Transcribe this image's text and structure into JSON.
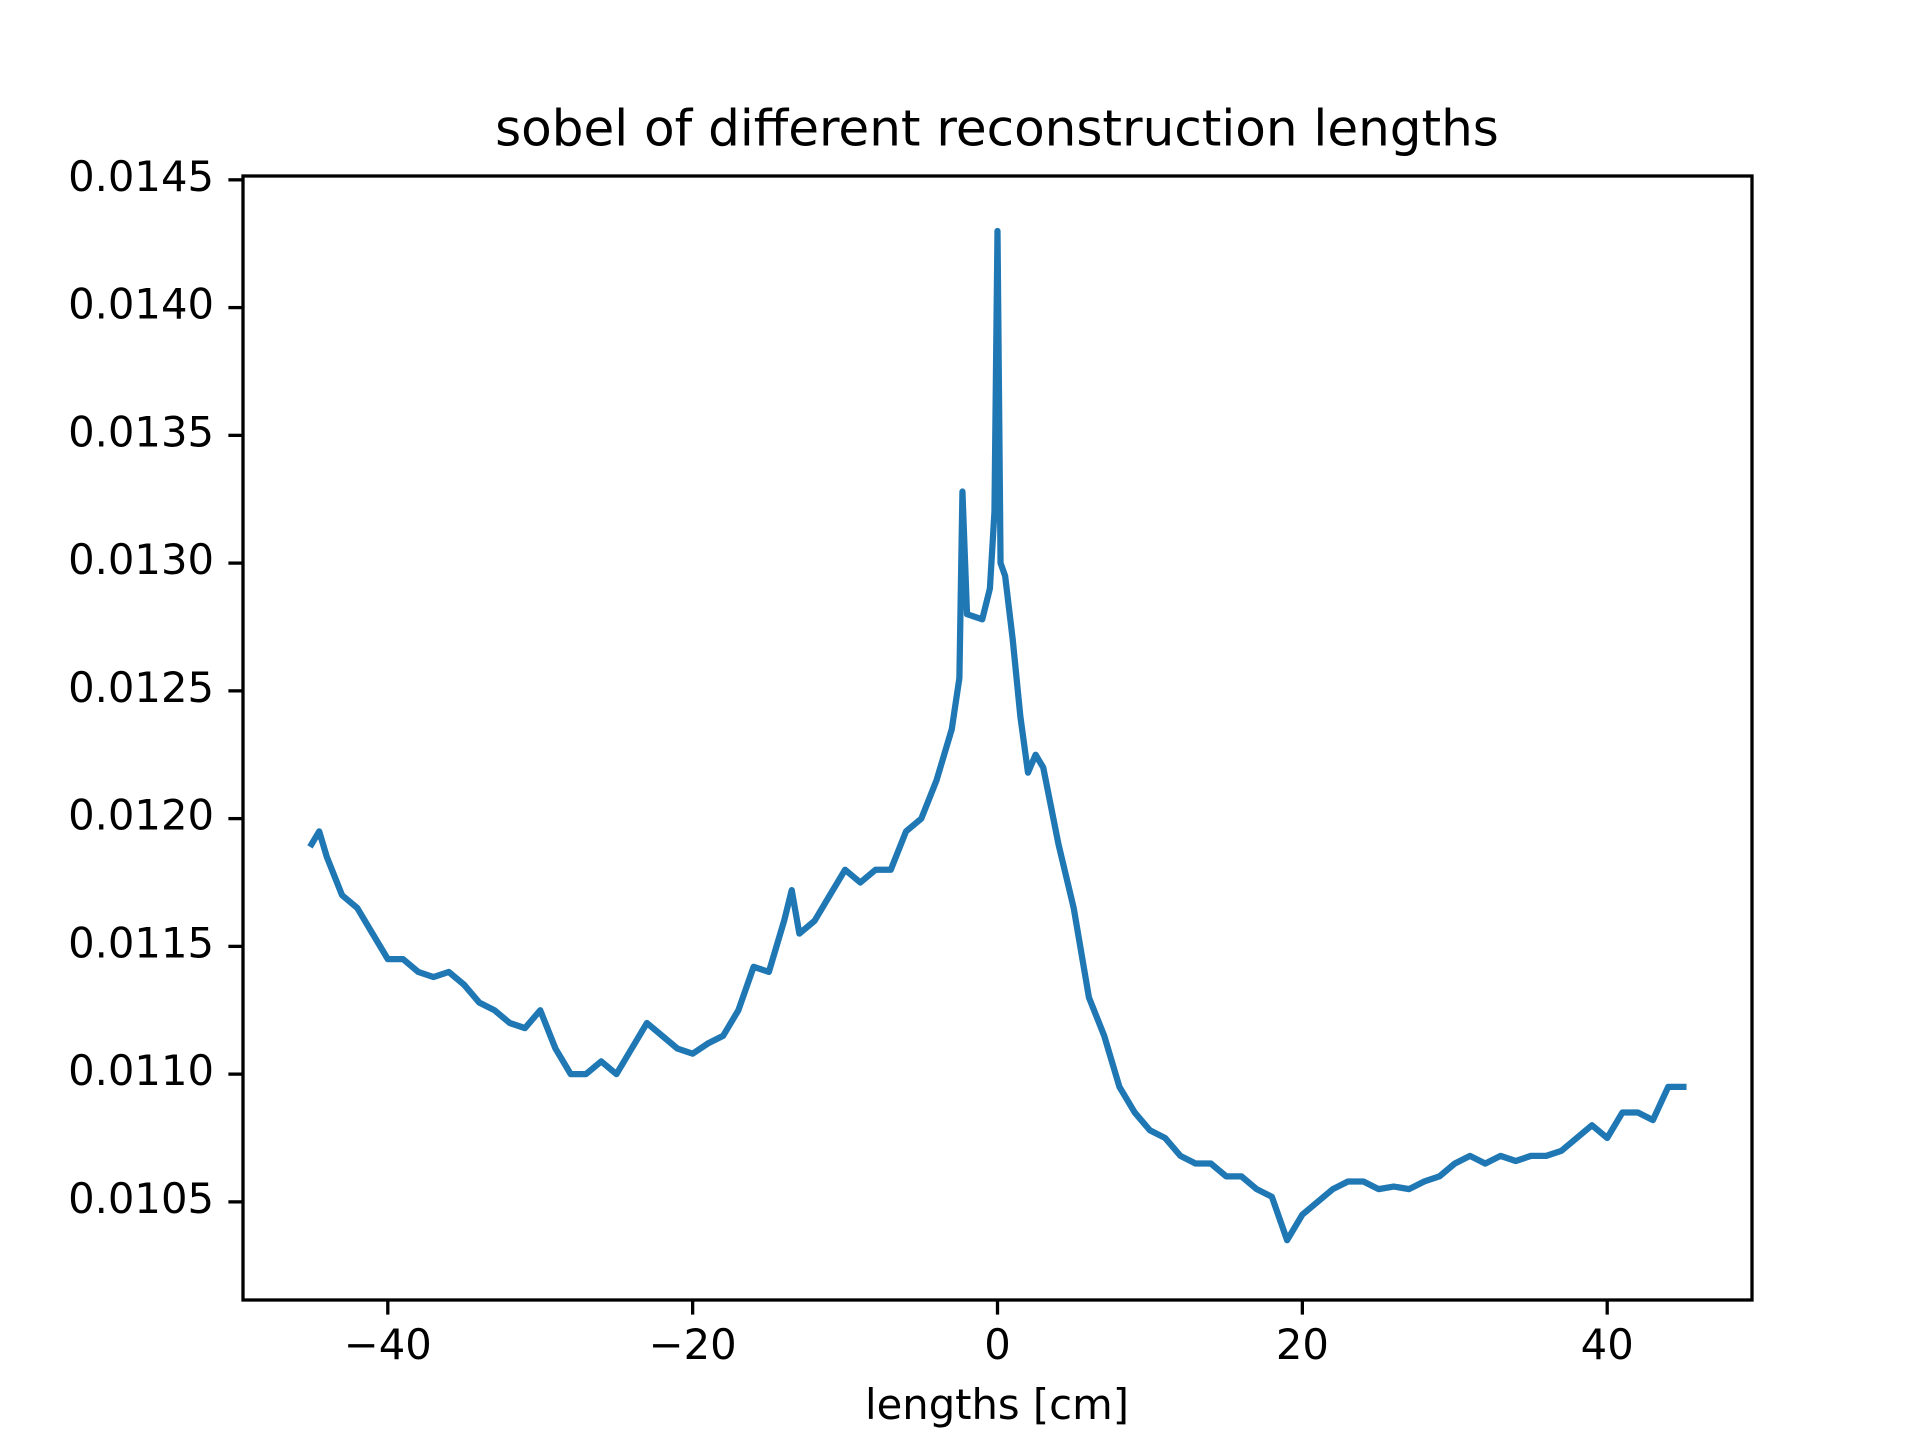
{
  "chart_data": {
    "type": "line",
    "title": "sobel of different reconstruction lengths",
    "xlabel": "lengths [cm]",
    "x": [
      -45,
      -44.5,
      -44,
      -43,
      -42,
      -41,
      -40,
      -39,
      -38,
      -37,
      -36,
      -35,
      -34,
      -33,
      -32,
      -31,
      -30,
      -29,
      -28,
      -27,
      -26,
      -25,
      -24,
      -23,
      -22,
      -21,
      -20,
      -19,
      -18,
      -17,
      -16,
      -15,
      -14,
      -13.5,
      -13,
      -12,
      -11,
      -10,
      -9,
      -8,
      -7,
      -6,
      -5,
      -4,
      -3,
      -2.5,
      -2.3,
      -2,
      -1,
      -0.5,
      -0.2,
      0,
      0.2,
      0.5,
      1,
      1.5,
      2,
      2.5,
      3,
      4,
      5,
      6,
      7,
      8,
      9,
      10,
      11,
      12,
      13,
      14,
      15,
      16,
      17,
      18,
      19,
      20,
      21,
      22,
      23,
      24,
      25,
      26,
      27,
      28,
      29,
      30,
      31,
      32,
      33,
      34,
      35,
      36,
      37,
      38,
      39,
      40,
      41,
      42,
      43,
      44,
      45
    ],
    "series": [
      {
        "color": "#1f77b4",
        "values": [
          0.0119,
          0.01195,
          0.01185,
          0.0117,
          0.01165,
          0.01155,
          0.01145,
          0.01145,
          0.0114,
          0.01138,
          0.0114,
          0.01135,
          0.01128,
          0.01125,
          0.0112,
          0.01118,
          0.01125,
          0.0111,
          0.011,
          0.011,
          0.01105,
          0.011,
          0.0111,
          0.0112,
          0.01115,
          0.0111,
          0.01108,
          0.01112,
          0.01115,
          0.01125,
          0.01142,
          0.0114,
          0.0116,
          0.01172,
          0.01155,
          0.0116,
          0.0117,
          0.0118,
          0.01175,
          0.0118,
          0.0118,
          0.01195,
          0.012,
          0.01215,
          0.01235,
          0.01255,
          0.01328,
          0.0128,
          0.01278,
          0.0129,
          0.0132,
          0.0143,
          0.013,
          0.01295,
          0.0127,
          0.0124,
          0.01218,
          0.01225,
          0.0122,
          0.0119,
          0.01165,
          0.0113,
          0.01115,
          0.01095,
          0.01085,
          0.01078,
          0.01075,
          0.01068,
          0.01065,
          0.01065,
          0.0106,
          0.0106,
          0.01055,
          0.01052,
          0.01035,
          0.01045,
          0.0105,
          0.01055,
          0.01058,
          0.01058,
          0.01055,
          0.01056,
          0.01055,
          0.01058,
          0.0106,
          0.01065,
          0.01068,
          0.01065,
          0.01068,
          0.01066,
          0.01068,
          0.01068,
          0.0107,
          0.01075,
          0.0108,
          0.01075,
          0.01085,
          0.01085,
          0.01082,
          0.01095,
          0.01095
        ]
      }
    ],
    "xlim": [
      -49.5,
      49.5
    ],
    "xticks": [
      {
        "value": -40,
        "label": "−40"
      },
      {
        "value": -20,
        "label": "−20"
      },
      0,
      20,
      40
    ],
    "ylim": [
      0.010116,
      0.014515
    ],
    "yticks": [
      0.0105,
      {
        "value": 0.011,
        "label": "0.0110"
      },
      0.0115,
      {
        "value": 0.012,
        "label": "0.0120"
      },
      0.0125,
      {
        "value": 0.013,
        "label": "0.0130"
      },
      0.0135,
      {
        "value": 0.014,
        "label": "0.0140"
      },
      0.0145
    ],
    "grid": false
  }
}
